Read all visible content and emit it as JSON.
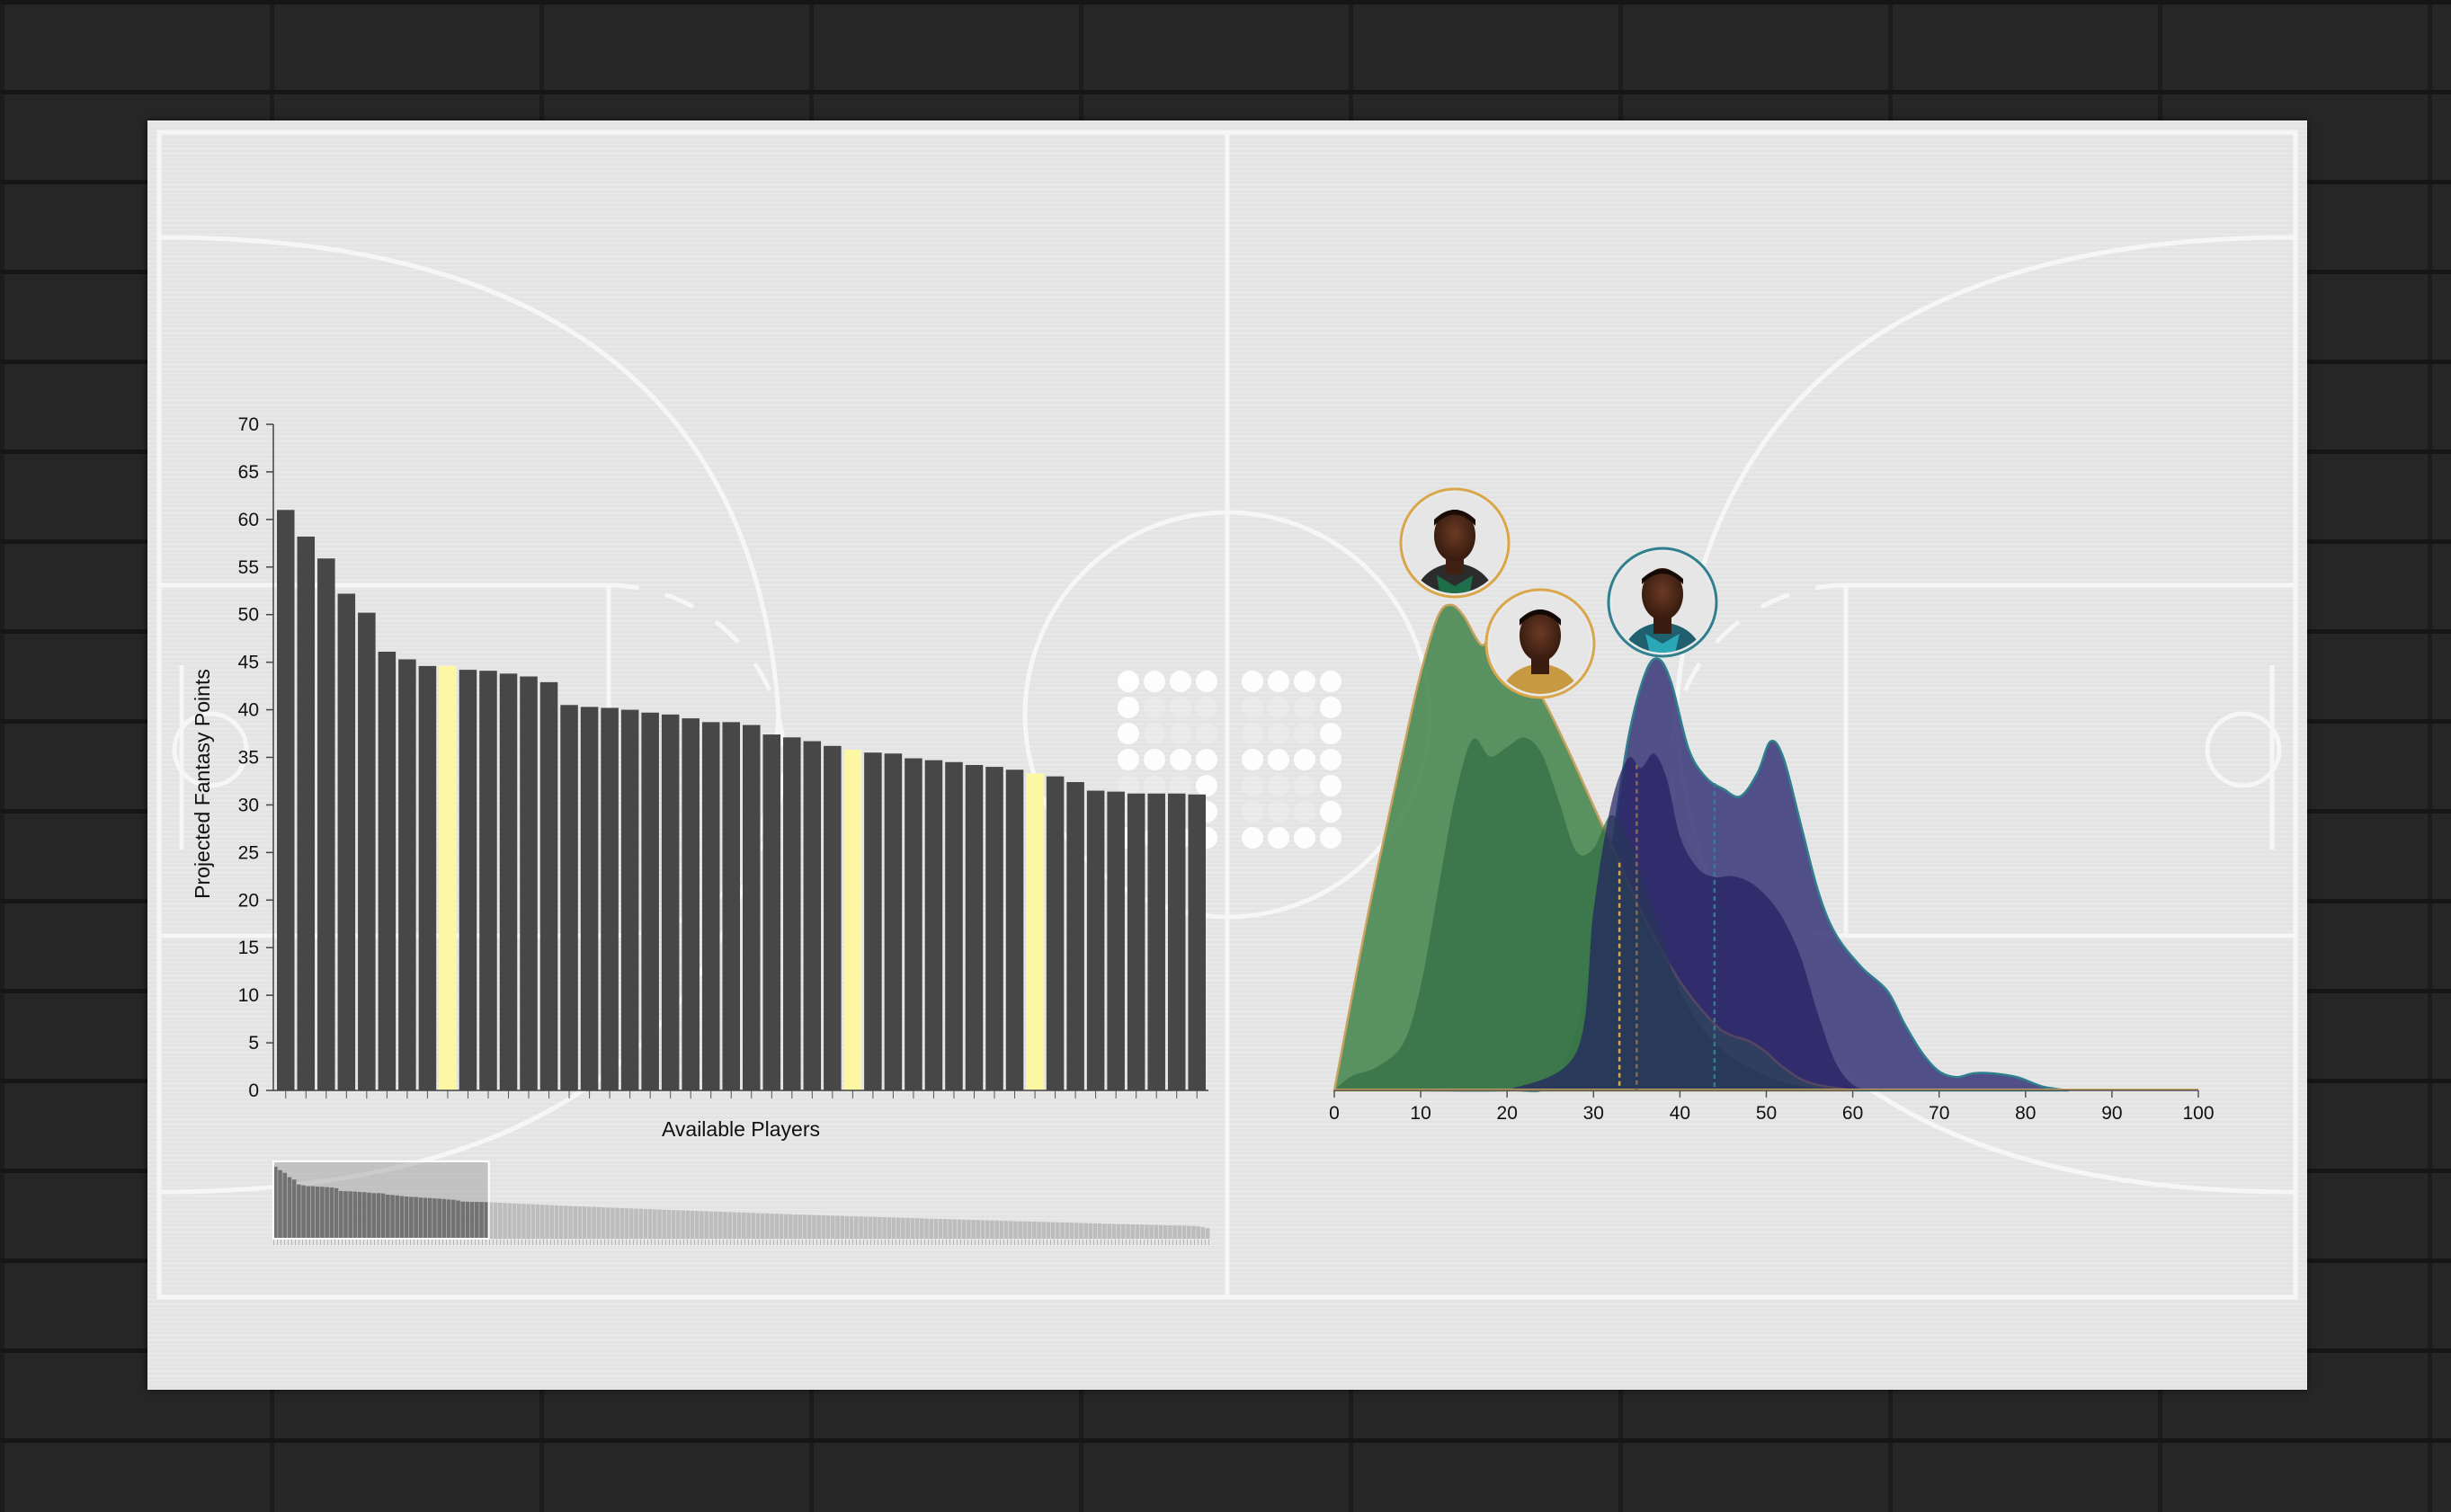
{
  "colors": {
    "bar": "#474747",
    "highlight": "#fcf7a3",
    "green_curve": "#4e8a55",
    "green_curve_dark": "#2f6e43",
    "navy_curve": "#3c3a7a",
    "navy_curve_dark": "#231f62",
    "ring_gold": "#d9a64a",
    "ring_teal": "#2f7f8e",
    "court_line": "#fafafa"
  },
  "scoreboard": {
    "digits": "53"
  },
  "chart_data": [
    {
      "type": "bar",
      "xlabel": "Available Players",
      "ylabel": "Projected Fantasy Points",
      "ylim": [
        0,
        70
      ],
      "yticks": [
        0,
        5,
        10,
        15,
        20,
        25,
        30,
        35,
        40,
        45,
        50,
        55,
        60,
        65,
        70
      ],
      "values": [
        61.0,
        58.2,
        55.9,
        52.2,
        50.2,
        46.1,
        45.3,
        44.6,
        44.6,
        44.2,
        44.1,
        43.8,
        43.5,
        42.9,
        40.5,
        40.3,
        40.2,
        40.0,
        39.7,
        39.5,
        39.1,
        38.7,
        38.7,
        38.4,
        37.4,
        37.1,
        36.7,
        36.2,
        35.8,
        35.5,
        35.4,
        34.9,
        34.7,
        34.5,
        34.2,
        34.0,
        33.7,
        33.3,
        33.0,
        32.4,
        31.5,
        31.4,
        31.2,
        31.2,
        31.2,
        31.1
      ],
      "highlighted_indices": [
        8,
        28,
        37
      ],
      "brush": {
        "visible_count": 46,
        "values": [
          61.0,
          58.2,
          55.9,
          52.2,
          50.2,
          46.1,
          45.3,
          44.6,
          44.6,
          44.2,
          44.1,
          43.8,
          43.5,
          42.9,
          40.5,
          40.3,
          40.2,
          40.0,
          39.7,
          39.5,
          39.1,
          38.7,
          38.7,
          38.4,
          37.4,
          37.1,
          36.7,
          36.2,
          35.8,
          35.5,
          35.4,
          34.9,
          34.7,
          34.5,
          34.2,
          34.0,
          33.7,
          33.3,
          33.0,
          32.4,
          31.5,
          31.4,
          31.2,
          31.2,
          31.2,
          31.1,
          30.9,
          30.7,
          30.5,
          30.3,
          30.1,
          29.9,
          29.7,
          29.6,
          29.4,
          29.2,
          29.0,
          28.8,
          28.7,
          28.5,
          28.3,
          28.1,
          28.0,
          27.8,
          27.6,
          27.5,
          27.3,
          27.1,
          27.0,
          26.8,
          26.6,
          26.5,
          26.3,
          26.2,
          26.0,
          25.8,
          25.7,
          25.5,
          25.4,
          25.2,
          25.1,
          24.9,
          24.8,
          24.6,
          24.5,
          24.3,
          24.2,
          24.0,
          23.9,
          23.7,
          23.6,
          23.4,
          23.3,
          23.1,
          23.0,
          22.9,
          22.7,
          22.6,
          22.4,
          22.3,
          22.2,
          22.0,
          21.9,
          21.7,
          21.6,
          21.5,
          21.3,
          21.2,
          21.1,
          20.9,
          20.8,
          20.7,
          20.5,
          20.4,
          20.3,
          20.1,
          20.0,
          19.9,
          19.7,
          19.6,
          19.5,
          19.4,
          19.2,
          19.1,
          19.0,
          18.9,
          18.7,
          18.6,
          18.5,
          18.4,
          18.2,
          18.1,
          18.0,
          17.9,
          17.7,
          17.6,
          17.5,
          17.4,
          17.3,
          17.1,
          17.0,
          16.9,
          16.8,
          16.7,
          16.5,
          16.4,
          16.3,
          16.2,
          16.1,
          16.0,
          15.8,
          15.7,
          15.6,
          15.5,
          15.4,
          15.3,
          15.2,
          15.0,
          14.9,
          14.8,
          14.7,
          14.6,
          14.5,
          14.4,
          14.3,
          14.1,
          14.0,
          13.9,
          13.8,
          13.7,
          13.6,
          13.5,
          13.4,
          13.3,
          13.2,
          13.1,
          13.0,
          12.8,
          12.7,
          12.6,
          12.5,
          12.4,
          12.3,
          12.2,
          12.1,
          12.0,
          11.9,
          11.8,
          11.7,
          11.6,
          11.5,
          11.4,
          11.3,
          11.2,
          11.1,
          11.0,
          10.9,
          10.5,
          9.8,
          9.0
        ]
      }
    },
    {
      "type": "area",
      "xlim": [
        0,
        100
      ],
      "xticks": [
        0,
        10,
        20,
        30,
        40,
        50,
        60,
        70,
        80,
        90,
        100
      ],
      "series": [
        {
          "color": "green_curve",
          "marker_x": 33,
          "x": [
            0,
            4,
            8,
            10,
            12,
            13.5,
            15,
            17,
            18.5,
            21,
            24,
            27,
            30,
            33,
            36,
            40,
            44,
            46,
            48,
            50,
            52,
            55,
            60
          ],
          "y": [
            0,
            190,
            360,
            440,
            500,
            512,
            500,
            470,
            480,
            455,
            415,
            360,
            300,
            240,
            180,
            115,
            70,
            58,
            52,
            40,
            24,
            8,
            0
          ]
        },
        {
          "color": "green_curve_dark",
          "marker_x": 0,
          "x": [
            0,
            2,
            5,
            8,
            10,
            12,
            14,
            16,
            18,
            20,
            22,
            24,
            26,
            28,
            30,
            32,
            34,
            36,
            38,
            40,
            44,
            50,
            55,
            58
          ],
          "y": [
            0,
            15,
            25,
            50,
            110,
            210,
            310,
            370,
            352,
            362,
            372,
            355,
            305,
            252,
            255,
            290,
            265,
            215,
            160,
            105,
            50,
            15,
            3,
            0
          ]
        },
        {
          "color": "navy_curve",
          "marker_x": 44,
          "x": [
            10,
            20,
            25,
            28,
            30,
            32,
            34,
            36,
            37.5,
            39,
            41,
            43,
            45,
            47,
            49,
            50.5,
            52,
            54,
            56,
            58,
            61,
            64,
            66,
            68,
            70,
            72,
            74,
            76,
            79,
            82,
            85
          ],
          "y": [
            0,
            0,
            5,
            60,
            150,
            250,
            370,
            440,
            455,
            430,
            360,
            330,
            318,
            310,
            335,
            368,
            350,
            280,
            210,
            165,
            130,
            105,
            70,
            40,
            20,
            14,
            18,
            18,
            14,
            4,
            0
          ]
        },
        {
          "color": "navy_curve_dark",
          "marker_x": 35,
          "x": [
            20,
            28,
            30,
            32,
            34,
            35.5,
            37,
            38.5,
            40,
            42,
            44,
            46,
            48,
            50,
            52,
            54,
            56,
            58,
            60,
            62
          ],
          "y": [
            0,
            40,
            190,
            300,
            350,
            340,
            355,
            328,
            268,
            235,
            225,
            226,
            220,
            205,
            180,
            140,
            80,
            30,
            6,
            0
          ]
        }
      ]
    }
  ]
}
